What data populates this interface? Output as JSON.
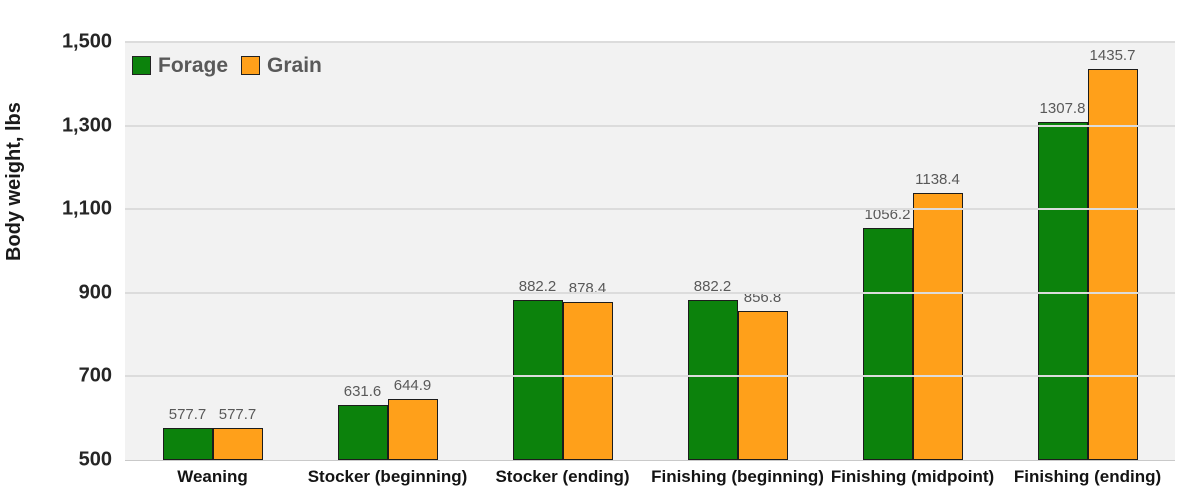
{
  "chart_data": {
    "type": "bar",
    "title": "",
    "categories": [
      "Weaning",
      "Stocker (beginning)",
      "Stocker (ending)",
      "Finishing (beginning)",
      "Finishing (midpoint)",
      "Finishing (ending)"
    ],
    "series": [
      {
        "name": "Forage",
        "color": "#0c820c",
        "values": [
          577.7,
          631.6,
          882.2,
          882.2,
          1056.2,
          1307.8
        ]
      },
      {
        "name": "Grain",
        "color": "#ffa01a",
        "values": [
          577.7,
          644.9,
          878.4,
          856.8,
          1138.4,
          1435.7
        ]
      }
    ],
    "xlabel": "",
    "ylabel": "Body weight, lbs",
    "ylim": [
      500,
      1500
    ],
    "y_tick_step": 200,
    "y_tick_labels": [
      "500",
      "700",
      "900",
      "1,100",
      "1,300",
      "1,500"
    ],
    "grid": true,
    "data_labels": true,
    "legend_position": "top-left-inside",
    "colors": {
      "plot_background": "#f2f2f2",
      "gridline": "#dcdcdc",
      "bar_border": "#1c1c1c",
      "axis_line": "#c9c9c9",
      "tick_text": "#262626",
      "category_text": "#141414",
      "data_label_text": "#595959",
      "legend_text": "#595959"
    }
  }
}
